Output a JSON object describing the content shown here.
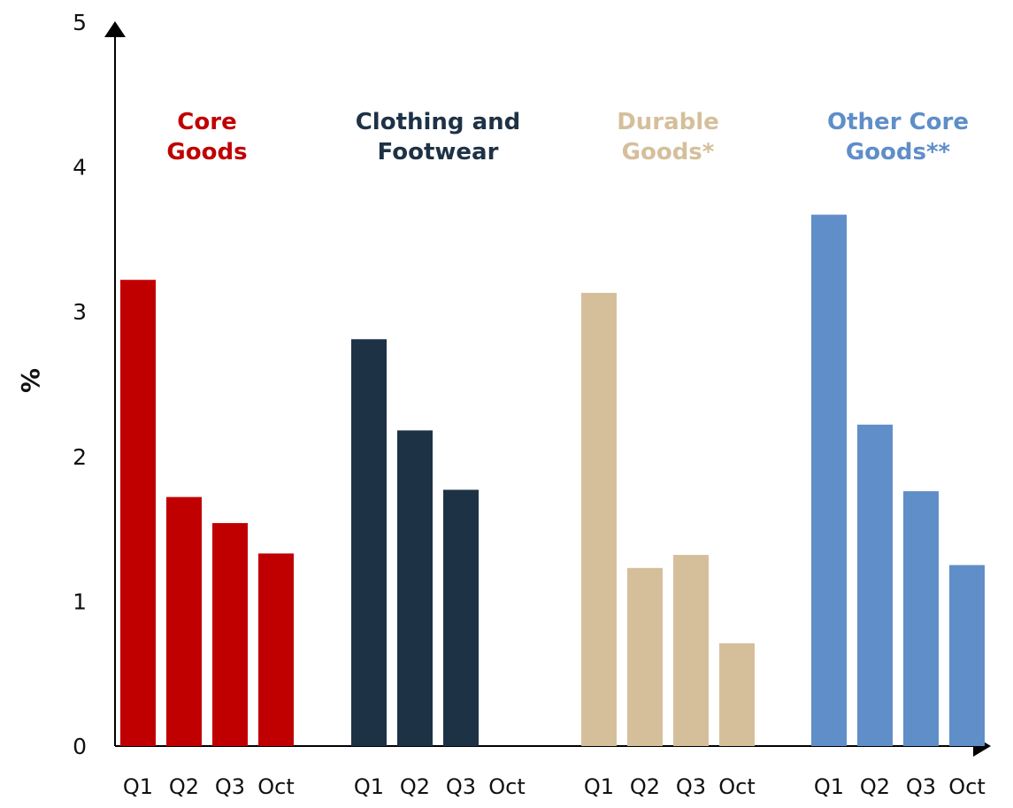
{
  "chart_data": {
    "type": "bar",
    "ylabel": "%",
    "ylim": [
      0,
      5
    ],
    "yticks": [
      "0",
      "1",
      "2",
      "3",
      "4",
      "5"
    ],
    "grid": false,
    "legend": "none",
    "groups": [
      {
        "title_lines": [
          "Core",
          "Goods"
        ],
        "color": "#c00000",
        "categories": [
          "Q1",
          "Q2",
          "Q3",
          "Oct"
        ],
        "values": [
          3.22,
          1.72,
          1.54,
          1.33
        ]
      },
      {
        "title_lines": [
          "Clothing and",
          "Footwear"
        ],
        "color": "#1e3246",
        "categories": [
          "Q1",
          "Q2",
          "Q3",
          "Oct"
        ],
        "values": [
          2.81,
          2.18,
          1.77,
          null
        ]
      },
      {
        "title_lines": [
          "Durable",
          "Goods*"
        ],
        "color": "#d5bf9b",
        "categories": [
          "Q1",
          "Q2",
          "Q3",
          "Oct"
        ],
        "values": [
          3.13,
          1.23,
          1.32,
          0.71
        ]
      },
      {
        "title_lines": [
          "Other Core",
          "Goods**"
        ],
        "color": "#5f8ec8",
        "categories": [
          "Q1",
          "Q2",
          "Q3",
          "Oct"
        ],
        "values": [
          3.67,
          2.22,
          1.76,
          1.25
        ]
      }
    ]
  }
}
